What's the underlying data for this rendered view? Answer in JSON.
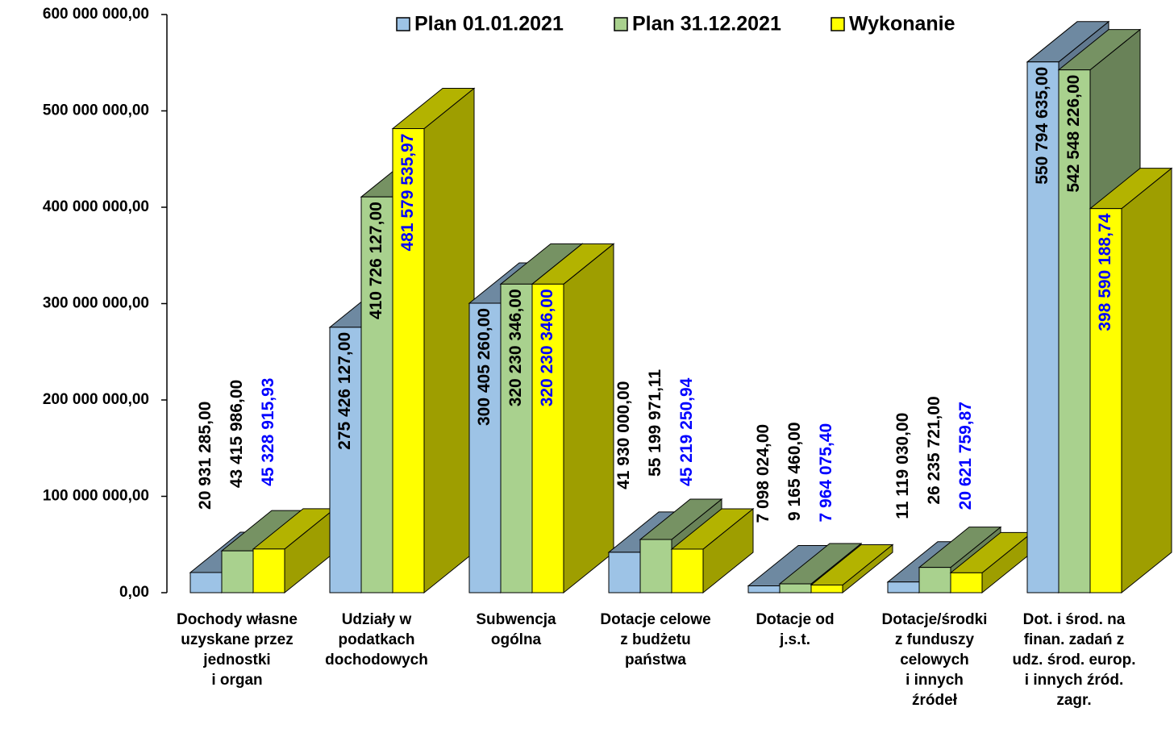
{
  "chart_data": {
    "type": "bar3d",
    "categories": [
      "Dochody własne\nuzyskane przez\njednostki\ni organ",
      "Udziały w\npodatkach\ndochodowych",
      "Subwencja\nogólna",
      "Dotacje celowe\nz budżetu\npaństwa",
      "Dotacje od\nj.s.t.",
      "Dotacje/środki\nz funduszy\ncelowych\ni innych\nźródeł",
      "Dot. i środ. na\nfinan. zadań z\nudz. środ. europ.\ni innych źród.\nzagr."
    ],
    "series": [
      {
        "name": "Plan 01.01.2021",
        "color": "#9dc3e6",
        "label_color": "#000000",
        "values": [
          20931285,
          275426127,
          300405260,
          41930000,
          7098024,
          11119030,
          550794635
        ],
        "value_labels": [
          "20 931 285,00",
          "275 426 127,00",
          "300 405 260,00",
          "41 930 000,00",
          "7 098 024,00",
          "11 119 030,00",
          "550 794 635,00"
        ]
      },
      {
        "name": "Plan 31.12.2021",
        "color": "#a9d18e",
        "label_color": "#000000",
        "values": [
          43415986,
          410726127,
          320230346,
          55199971.11,
          9165460,
          26235721,
          542548226
        ],
        "value_labels": [
          "43 415 986,00",
          "410 726 127,00",
          "320 230 346,00",
          "55 199 971,11",
          "9 165 460,00",
          "26 235 721,00",
          "542 548 226,00"
        ]
      },
      {
        "name": "Wykonanie",
        "color": "#ffff00",
        "label_color": "#0000ff",
        "values": [
          45328915.93,
          481579535.97,
          320230346,
          45219250.94,
          7964075.4,
          20621759.87,
          398590188.74
        ],
        "value_labels": [
          "45 328 915,93",
          "481 579 535,97",
          "320 230 346,00",
          "45 219 250,94",
          "7 964 075,40",
          "20 621 759,87",
          "398 590 188,74"
        ]
      }
    ],
    "ylim": [
      0,
      600000000
    ],
    "yticks": [
      {
        "value": 0,
        "label": "0,00"
      },
      {
        "value": 100000000,
        "label": "100 000 000,00"
      },
      {
        "value": 200000000,
        "label": "200 000 000,00"
      },
      {
        "value": 300000000,
        "label": "300 000 000,00"
      },
      {
        "value": 400000000,
        "label": "400 000 000,00"
      },
      {
        "value": 500000000,
        "label": "500 000 000,00"
      },
      {
        "value": 600000000,
        "label": "600 000 000,00"
      }
    ],
    "legend": "top"
  }
}
